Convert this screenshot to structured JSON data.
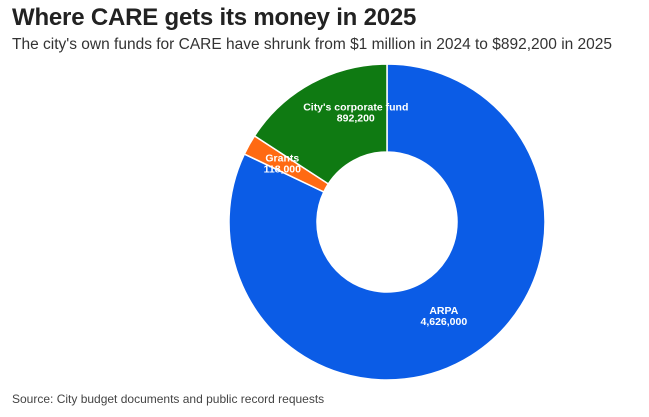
{
  "title": "Where CARE gets its money in 2025",
  "subtitle": "The city's own funds for CARE have shrunk from $1 million in 2024 to $892,200 in 2025",
  "source": "Source: City budget documents and public record requests",
  "chart_data": {
    "type": "pie",
    "donut": true,
    "slices": [
      {
        "name": "ARPA",
        "value_label": "4,626,000",
        "value": 4626000,
        "color": "#0b5ce6"
      },
      {
        "name": "Grants",
        "value_label": "118,000",
        "value": 118000,
        "color": "#ff6a13"
      },
      {
        "name": "City's corporate fund",
        "value_label": "892,200",
        "value": 892200,
        "color": "#0f7a12"
      }
    ]
  }
}
